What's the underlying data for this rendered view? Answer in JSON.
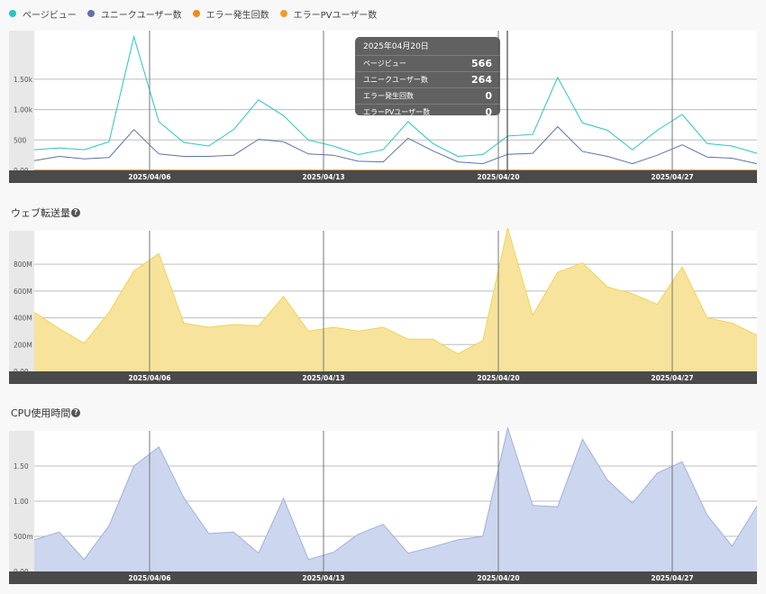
{
  "legend": [
    {
      "label": "ページビュー",
      "color": "#2bc4c4"
    },
    {
      "label": "ユニークユーザー数",
      "color": "#5f72a6"
    },
    {
      "label": "エラー発生回数",
      "color": "#f08a1c"
    },
    {
      "label": "エラーPVユーザー数",
      "color": "#f09b2a"
    }
  ],
  "sections": {
    "transfer_title": "ウェブ転送量",
    "cpu_title": "CPU使用時間",
    "help_glyph": "?"
  },
  "tooltip": {
    "date": "2025年04月20日",
    "rows": [
      {
        "label": "ページビュー",
        "value": "566"
      },
      {
        "label": "ユニークユーザー数",
        "value": "264"
      },
      {
        "label": "エラー発生回数",
        "value": "0"
      },
      {
        "label": "エラーPVユーザー数",
        "value": "0"
      }
    ]
  },
  "chart_data": [
    {
      "type": "line",
      "x_ticks": [
        "2025/04/06",
        "2025/04/13",
        "2025/04/20",
        "2025/04/27"
      ],
      "y_ticks": [
        "0.00",
        "500",
        "1.00k",
        "1.50k"
      ],
      "ylim": [
        0,
        2300
      ],
      "grid": true,
      "legend_position": "top-left",
      "series": [
        {
          "name": "ページビュー",
          "color": "#2bc4c4",
          "values": [
            340,
            370,
            340,
            470,
            2200,
            800,
            460,
            400,
            670,
            1160,
            900,
            500,
            400,
            260,
            340,
            800,
            440,
            230,
            260,
            566,
            590,
            1530,
            780,
            660,
            340,
            660,
            920,
            440,
            400,
            280
          ]
        },
        {
          "name": "ユニークユーザー数",
          "color": "#5f72a6",
          "values": [
            160,
            230,
            190,
            210,
            670,
            270,
            230,
            230,
            250,
            510,
            470,
            270,
            250,
            150,
            140,
            530,
            320,
            140,
            110,
            264,
            280,
            720,
            310,
            230,
            110,
            250,
            420,
            220,
            200,
            110
          ]
        },
        {
          "name": "エラー発生回数",
          "color": "#f08a1c",
          "values": [
            0,
            0,
            0,
            0,
            0,
            0,
            0,
            0,
            0,
            0,
            0,
            0,
            0,
            0,
            0,
            0,
            0,
            0,
            0,
            0,
            0,
            0,
            0,
            0,
            0,
            0,
            0,
            0,
            0,
            0
          ]
        },
        {
          "name": "エラーPVユーザー数",
          "color": "#f09b2a",
          "values": [
            0,
            0,
            0,
            0,
            0,
            0,
            0,
            0,
            0,
            0,
            0,
            0,
            0,
            0,
            0,
            0,
            0,
            0,
            0,
            0,
            0,
            0,
            0,
            0,
            0,
            0,
            0,
            0,
            0,
            0
          ]
        }
      ]
    },
    {
      "type": "area",
      "x_ticks": [
        "2025/04/06",
        "2025/04/13",
        "2025/04/20",
        "2025/04/27"
      ],
      "y_ticks": [
        "0.00",
        "200M",
        "400M",
        "600M",
        "800M"
      ],
      "ylim": [
        0,
        1050
      ],
      "grid": true,
      "series": [
        {
          "color": "#f7e39b",
          "values": [
            440,
            320,
            210,
            440,
            750,
            880,
            360,
            330,
            350,
            340,
            560,
            300,
            330,
            300,
            330,
            240,
            240,
            130,
            230,
            1070,
            420,
            740,
            810,
            630,
            580,
            500,
            780,
            400,
            360,
            270
          ]
        }
      ]
    },
    {
      "type": "area",
      "x_ticks": [
        "2025/04/06",
        "2025/04/13",
        "2025/04/20",
        "2025/04/27"
      ],
      "y_ticks": [
        "0.00",
        "500m",
        "1.00",
        "1.50"
      ],
      "ylim": [
        0,
        2.0
      ],
      "grid": true,
      "series": [
        {
          "color": "#ccd6ee",
          "values": [
            0.45,
            0.56,
            0.17,
            0.65,
            1.5,
            1.77,
            1.05,
            0.54,
            0.56,
            0.26,
            1.04,
            0.17,
            0.27,
            0.53,
            0.67,
            0.26,
            0.35,
            0.45,
            0.5,
            2.04,
            0.94,
            0.92,
            1.88,
            1.3,
            0.97,
            1.4,
            1.56,
            0.8,
            0.36,
            0.93
          ]
        }
      ]
    }
  ]
}
